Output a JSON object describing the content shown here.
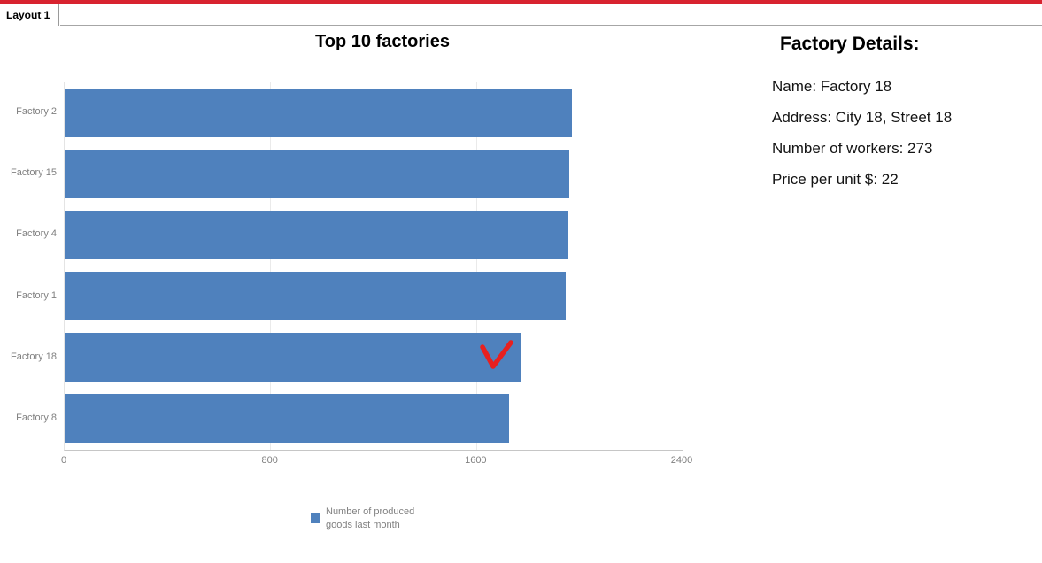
{
  "window": {
    "tab_label": "Layout 1"
  },
  "chart": {
    "title": "Top 10 factories",
    "legend": {
      "line1": "Number of produced",
      "line2": "goods last month"
    }
  },
  "chart_data": {
    "type": "bar",
    "orientation": "horizontal",
    "title": "Top 10 factories",
    "categories": [
      "Factory 2",
      "Factory 15",
      "Factory 4",
      "Factory 1",
      "Factory 18",
      "Factory 8"
    ],
    "values": [
      1970,
      1960,
      1955,
      1945,
      1770,
      1725
    ],
    "series_name": "Number of produced goods last month",
    "xlabel": "",
    "ylabel": "",
    "xlim": [
      0,
      2400
    ],
    "xticks": [
      0,
      800,
      1600,
      2400
    ],
    "grid": true,
    "legend_position": "bottom",
    "bar_color": "#4f81bd",
    "annotation": {
      "type": "red-checkmark",
      "category": "Factory 18"
    }
  },
  "details": {
    "heading": "Factory Details:",
    "name": "Name: Factory 18",
    "address": "Address: City 18, Street 18",
    "workers": "Number of workers: 273",
    "price": "Price per unit $: 22"
  },
  "colors": {
    "top_bar": "#d8232f",
    "bar": "#4f81bd",
    "checkmark": "#e8201f",
    "axis_text": "#808080",
    "gridline": "#eaeaea"
  }
}
